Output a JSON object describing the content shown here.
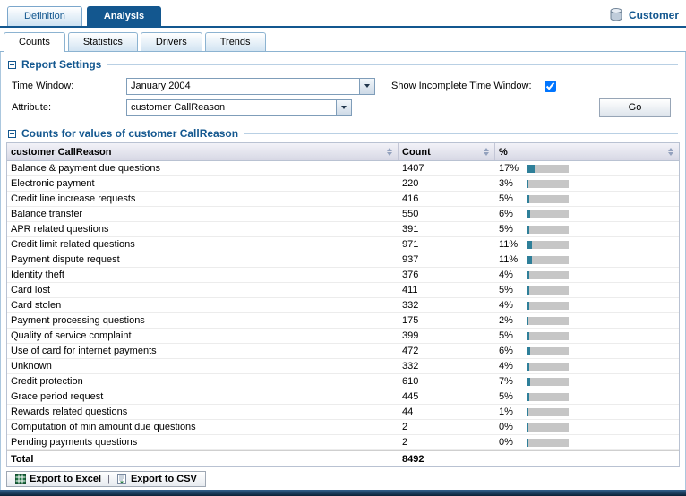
{
  "header": {
    "entity": "Customer",
    "tabs": [
      {
        "label": "Definition",
        "active": false
      },
      {
        "label": "Analysis",
        "active": true
      }
    ],
    "sub_tabs": [
      {
        "label": "Counts",
        "active": true
      },
      {
        "label": "Statistics",
        "active": false
      },
      {
        "label": "Drivers",
        "active": false
      },
      {
        "label": "Trends",
        "active": false
      }
    ]
  },
  "report_settings": {
    "title": "Report Settings",
    "time_window_label": "Time Window:",
    "time_window_value": "January 2004",
    "show_incomplete_label": "Show Incomplete Time Window:",
    "show_incomplete_checked": true,
    "attribute_label": "Attribute:",
    "attribute_value": "customer CallReason",
    "go_button": "Go"
  },
  "counts": {
    "title": "Counts for values of customer CallReason",
    "columns": [
      "customer CallReason",
      "Count",
      "%"
    ],
    "rows": [
      {
        "label": "Balance & payment due questions",
        "count": "1407",
        "percent": "17%",
        "percent_value": 17
      },
      {
        "label": "Electronic payment",
        "count": "220",
        "percent": "3%",
        "percent_value": 3
      },
      {
        "label": "Credit line increase requests",
        "count": "416",
        "percent": "5%",
        "percent_value": 5
      },
      {
        "label": "Balance transfer",
        "count": "550",
        "percent": "6%",
        "percent_value": 6
      },
      {
        "label": "APR related questions",
        "count": "391",
        "percent": "5%",
        "percent_value": 5
      },
      {
        "label": "Credit limit related questions",
        "count": "971",
        "percent": "11%",
        "percent_value": 11
      },
      {
        "label": "Payment dispute request",
        "count": "937",
        "percent": "11%",
        "percent_value": 11
      },
      {
        "label": "Identity theft",
        "count": "376",
        "percent": "4%",
        "percent_value": 4
      },
      {
        "label": "Card lost",
        "count": "411",
        "percent": "5%",
        "percent_value": 5
      },
      {
        "label": "Card stolen",
        "count": "332",
        "percent": "4%",
        "percent_value": 4
      },
      {
        "label": "Payment processing questions",
        "count": "175",
        "percent": "2%",
        "percent_value": 2
      },
      {
        "label": "Quality of service complaint",
        "count": "399",
        "percent": "5%",
        "percent_value": 5
      },
      {
        "label": "Use of card for internet payments",
        "count": "472",
        "percent": "6%",
        "percent_value": 6
      },
      {
        "label": "Unknown",
        "count": "332",
        "percent": "4%",
        "percent_value": 4
      },
      {
        "label": "Credit protection",
        "count": "610",
        "percent": "7%",
        "percent_value": 7
      },
      {
        "label": "Grace period request",
        "count": "445",
        "percent": "5%",
        "percent_value": 5
      },
      {
        "label": "Rewards related questions",
        "count": "44",
        "percent": "1%",
        "percent_value": 1
      },
      {
        "label": "Computation of min amount due questions",
        "count": "2",
        "percent": "0%",
        "percent_value": 0
      },
      {
        "label": "Pending payments questions",
        "count": "2",
        "percent": "0%",
        "percent_value": 0
      }
    ],
    "total": {
      "label": "Total",
      "count": "8492"
    }
  },
  "footer": {
    "export_excel": "Export to Excel",
    "separator": "|",
    "export_csv": "Export to CSV"
  },
  "colors": {
    "accent_blue": "#13578F",
    "bar_fill": "#2E7F99",
    "bar_bg": "#C6C6C6"
  }
}
